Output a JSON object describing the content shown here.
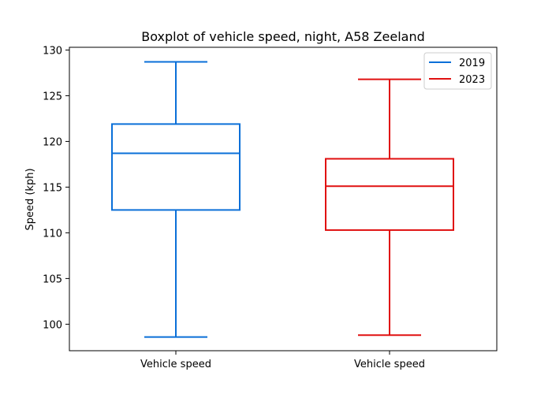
{
  "chart_data": {
    "type": "box",
    "title": "Boxplot of vehicle speed, night, A58 Zeeland",
    "xlabel": "",
    "ylabel": "Speed (kph)",
    "ylim": [
      97.1,
      130.3
    ],
    "yticks": [
      100,
      105,
      110,
      115,
      120,
      125,
      130
    ],
    "grid": false,
    "legend_position": "top-right",
    "categories": [
      "Vehicle speed",
      "Vehicle speed"
    ],
    "series": [
      {
        "name": "2019",
        "color": "#0a6fd8",
        "whisker_low": 98.6,
        "q1": 112.5,
        "median": 118.7,
        "q3": 121.9,
        "whisker_high": 128.7
      },
      {
        "name": "2023",
        "color": "#e01010",
        "whisker_low": 98.8,
        "q1": 110.3,
        "median": 115.1,
        "q3": 118.1,
        "whisker_high": 126.8
      }
    ]
  }
}
